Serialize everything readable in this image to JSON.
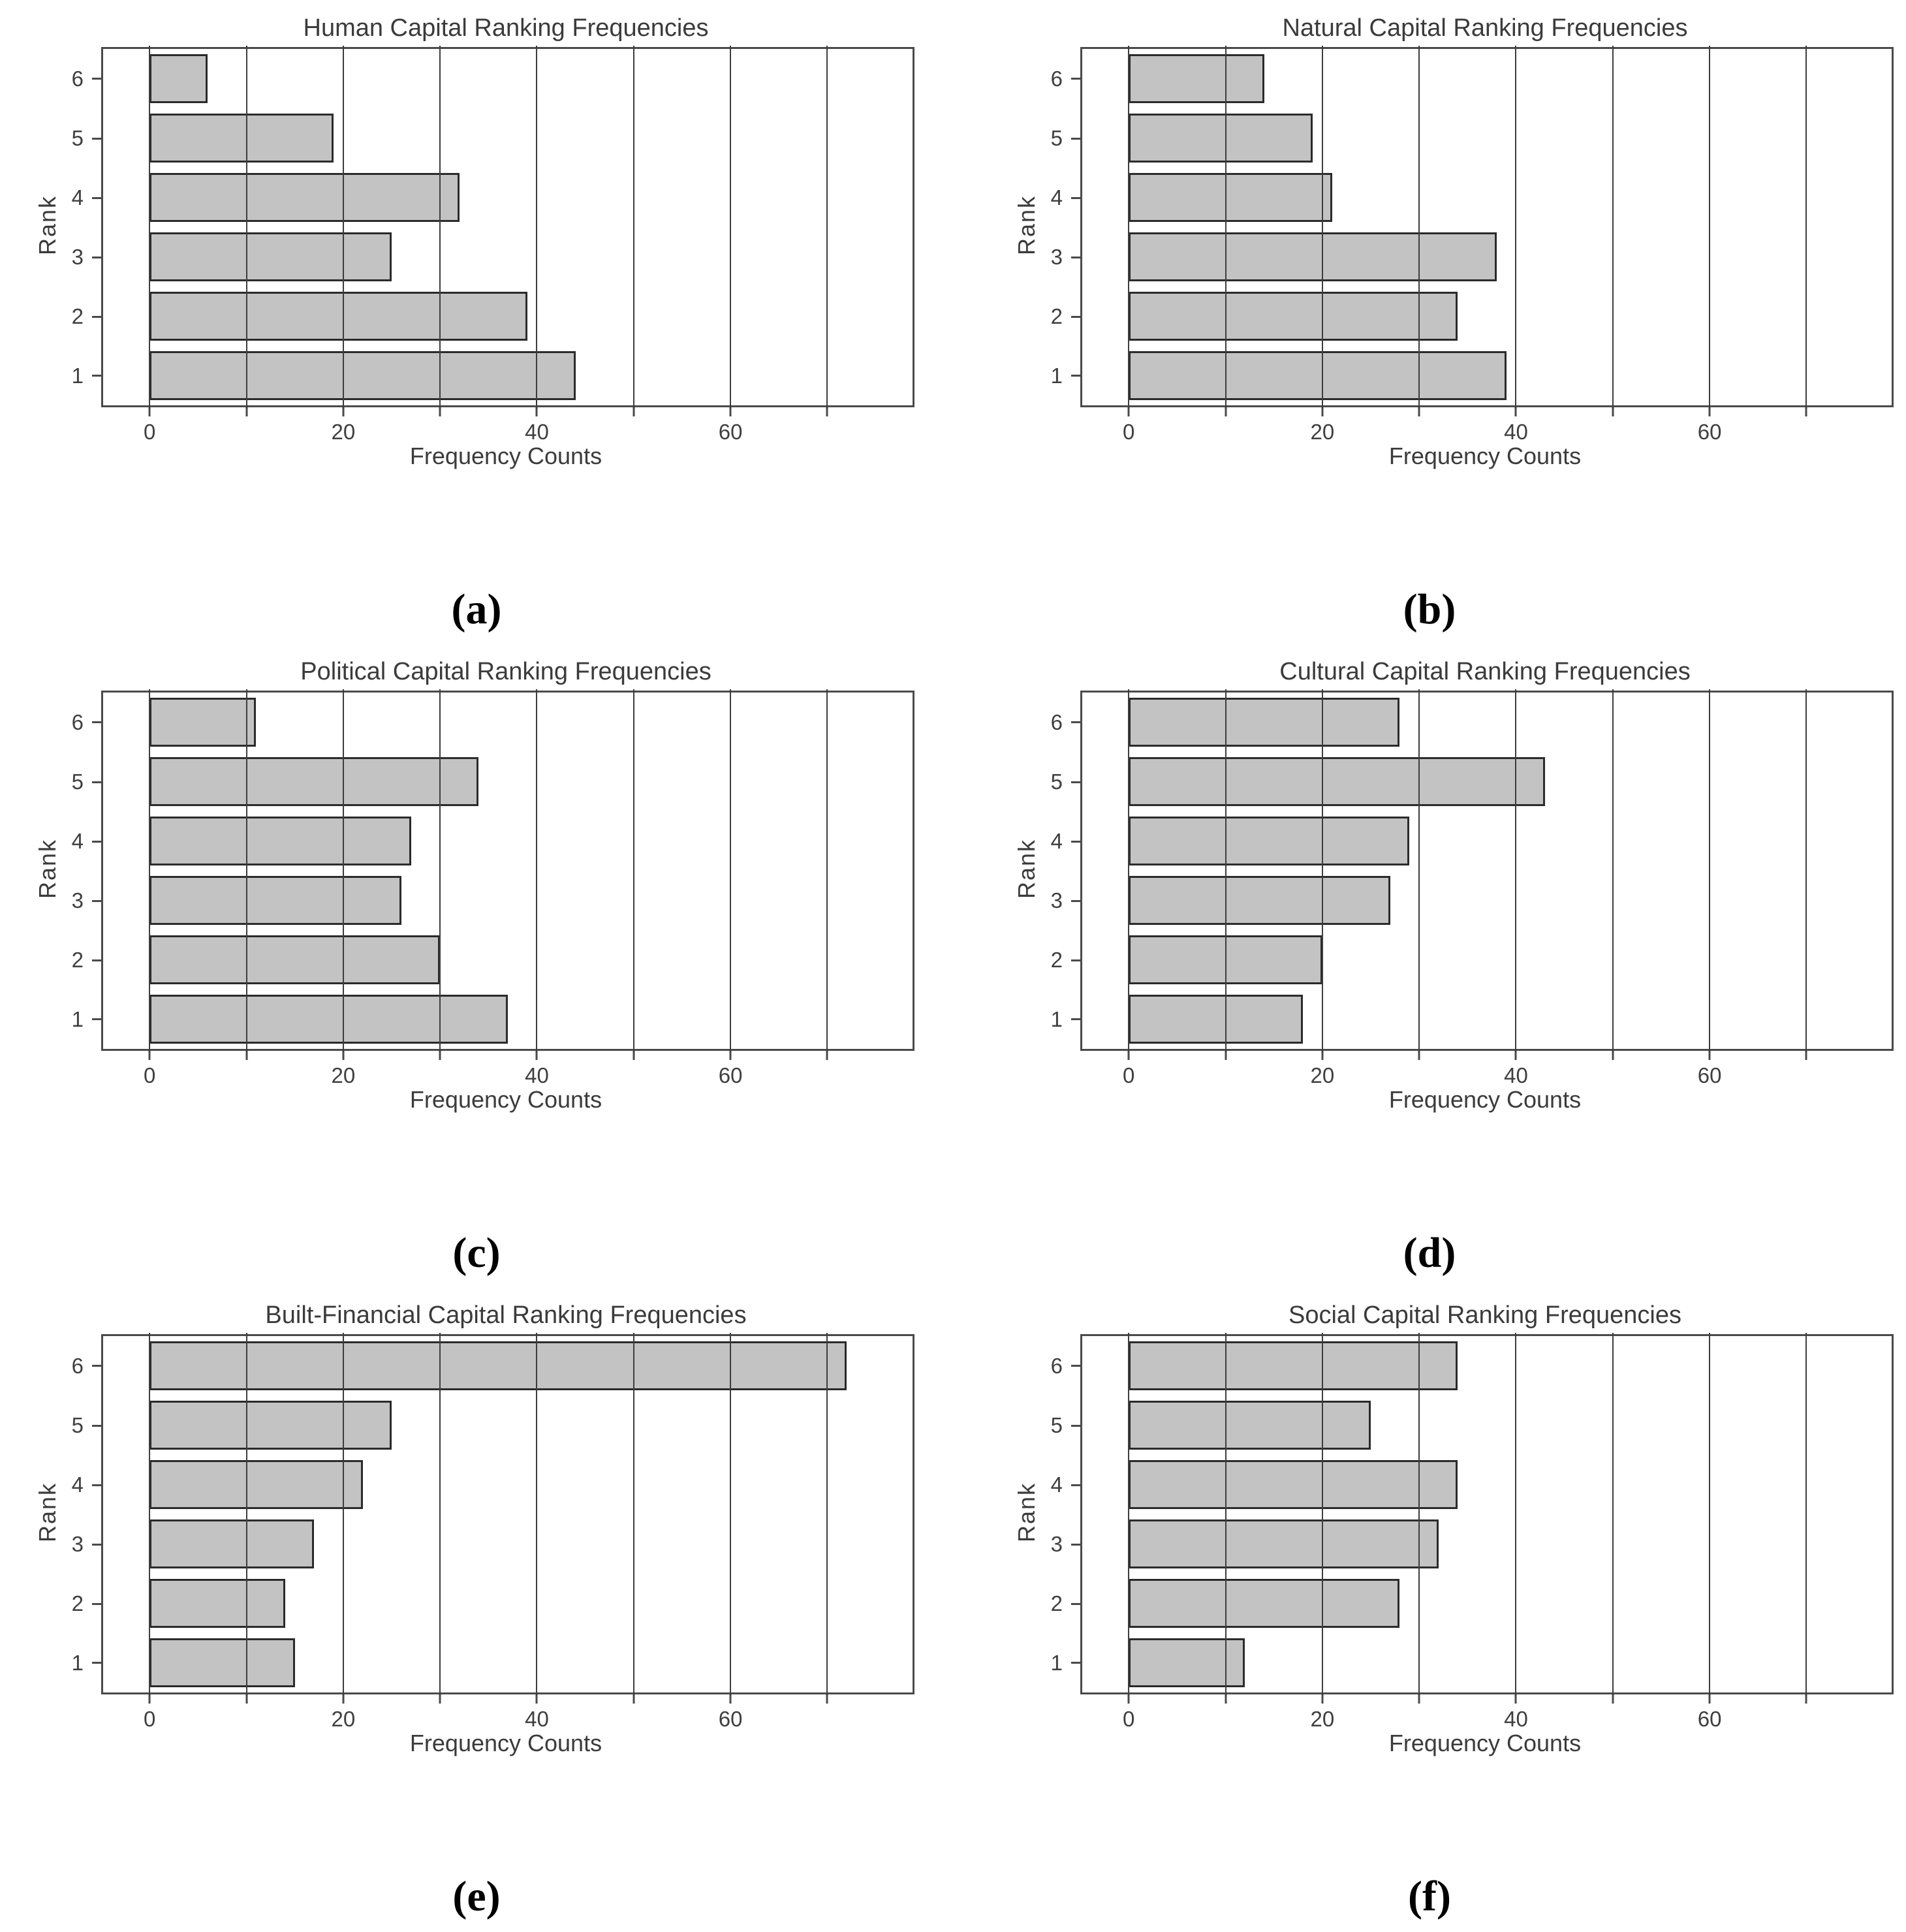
{
  "axis": {
    "xlabel": "Frequency Counts",
    "ylabel": "Rank",
    "x_tick_labels": [
      0,
      20,
      40,
      60
    ],
    "x_gridlines": [
      0,
      10,
      20,
      30,
      40,
      50,
      60,
      70
    ],
    "x_min": -4.8,
    "x_max": 78.8,
    "ranks_top_to_bottom": [
      6,
      5,
      4,
      3,
      2,
      1
    ],
    "grid": "on",
    "legend": "none"
  },
  "colors": {
    "bar_fill": "#c3c3c3",
    "bar_border": "#2b2b2b",
    "gridline": "#3d3d3d",
    "plot_border": "#4a4a4a",
    "text": "#3b3b3b"
  },
  "chart_data": [
    {
      "type": "bar",
      "orientation": "horizontal",
      "panel": "a",
      "title": "Human Capital Ranking Frequencies",
      "xlabel": "Frequency Counts",
      "ylabel": "Rank",
      "categories": [
        1,
        2,
        3,
        4,
        5,
        6
      ],
      "values": [
        44,
        39,
        25,
        32,
        19,
        6
      ],
      "xlim": [
        0,
        78
      ],
      "caption": "(a)"
    },
    {
      "type": "bar",
      "orientation": "horizontal",
      "panel": "b",
      "title": "Natural Capital Ranking Frequencies",
      "xlabel": "Frequency Counts",
      "ylabel": "Rank",
      "categories": [
        1,
        2,
        3,
        4,
        5,
        6
      ],
      "values": [
        39,
        34,
        38,
        21,
        19,
        14
      ],
      "xlim": [
        0,
        78
      ],
      "caption": "(b)"
    },
    {
      "type": "bar",
      "orientation": "horizontal",
      "panel": "c",
      "title": "Political Capital Ranking Frequencies",
      "xlabel": "Frequency Counts",
      "ylabel": "Rank",
      "categories": [
        1,
        2,
        3,
        4,
        5,
        6
      ],
      "values": [
        37,
        30,
        26,
        27,
        34,
        11
      ],
      "xlim": [
        0,
        78
      ],
      "caption": "(c)"
    },
    {
      "type": "bar",
      "orientation": "horizontal",
      "panel": "d",
      "title": "Cultural Capital Ranking Frequencies",
      "xlabel": "Frequency Counts",
      "ylabel": "Rank",
      "categories": [
        1,
        2,
        3,
        4,
        5,
        6
      ],
      "values": [
        18,
        20,
        27,
        29,
        43,
        28
      ],
      "xlim": [
        0,
        78
      ],
      "caption": "(d)"
    },
    {
      "type": "bar",
      "orientation": "horizontal",
      "panel": "e",
      "title": "Built-Financial Capital Ranking Frequencies",
      "xlabel": "Frequency Counts",
      "ylabel": "Rank",
      "categories": [
        1,
        2,
        3,
        4,
        5,
        6
      ],
      "values": [
        15,
        14,
        17,
        22,
        25,
        72
      ],
      "xlim": [
        0,
        78
      ],
      "caption": "(e)"
    },
    {
      "type": "bar",
      "orientation": "horizontal",
      "panel": "f",
      "title": "Social Capital Ranking Frequencies",
      "xlabel": "Frequency Counts",
      "ylabel": "Rank",
      "categories": [
        1,
        2,
        3,
        4,
        5,
        6
      ],
      "values": [
        12,
        28,
        32,
        34,
        25,
        34
      ],
      "xlim": [
        0,
        78
      ],
      "caption": "(f)"
    }
  ]
}
